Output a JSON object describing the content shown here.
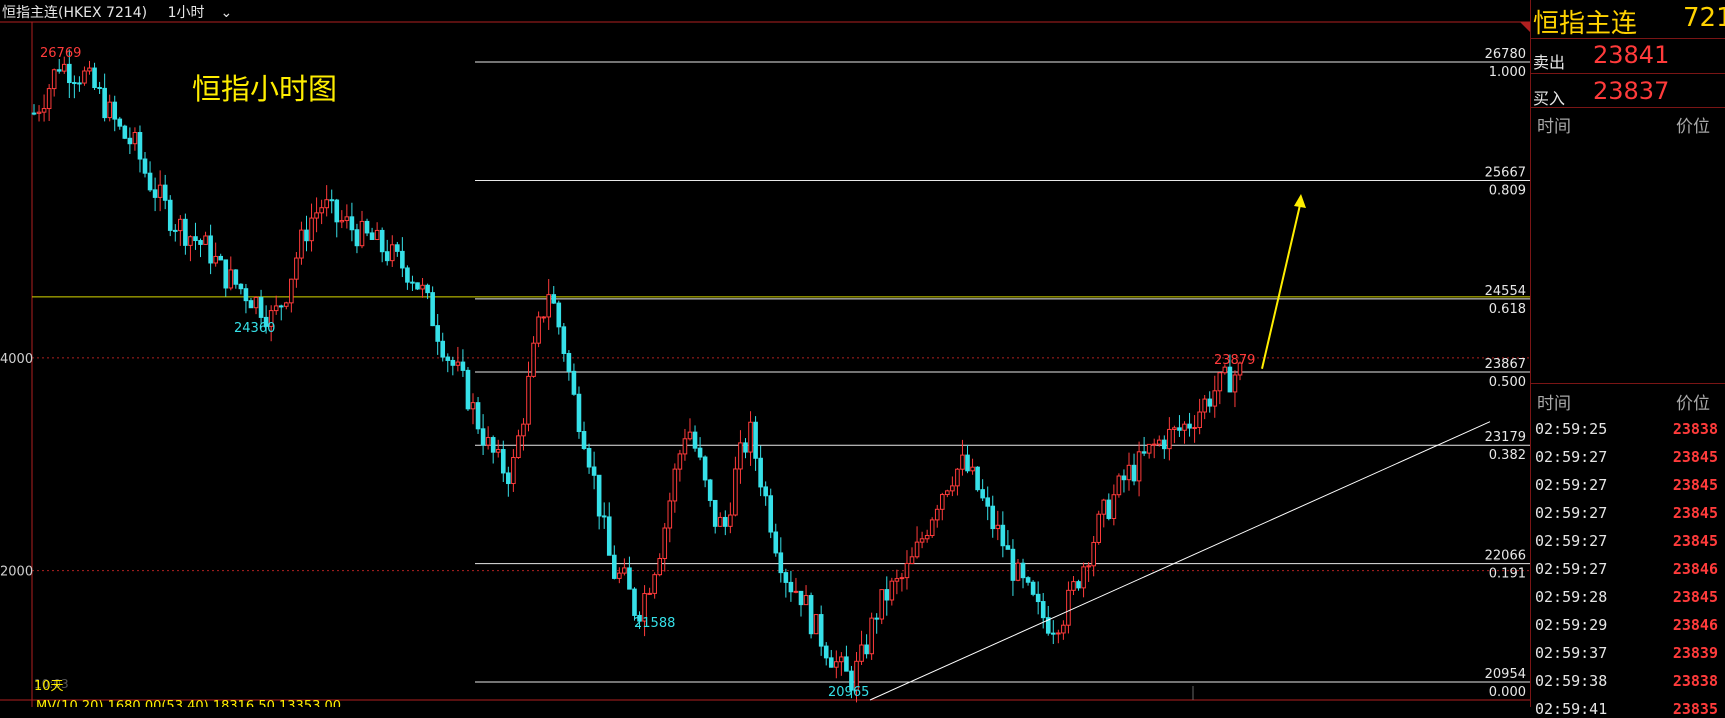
{
  "header": {
    "instrument": "恒指主连(HKEX 7214)",
    "period": "1小时"
  },
  "chart_title": "恒指小时图",
  "price_axis": [
    {
      "label": "4000",
      "value": 24000
    },
    {
      "label": "2000",
      "value": 22000
    }
  ],
  "fib_levels": [
    {
      "price": "26780",
      "ratio": "1.000",
      "value": 26780
    },
    {
      "price": "25667",
      "ratio": "0.809",
      "value": 25667
    },
    {
      "price": "24554",
      "ratio": "0.618",
      "value": 24554
    },
    {
      "price": "23867",
      "ratio": "0.500",
      "value": 23867
    },
    {
      "price": "23179",
      "ratio": "0.382",
      "value": 23179
    },
    {
      "price": "22066",
      "ratio": "0.191",
      "value": 22066
    },
    {
      "price": "20954",
      "ratio": "0.000",
      "value": 20954
    }
  ],
  "annotations": [
    {
      "text": "26769",
      "color": "#ff3b3b"
    },
    {
      "text": "24360",
      "color": "#36e0e8"
    },
    {
      "text": "21588",
      "color": "#36e0e8"
    },
    {
      "text": "20965",
      "color": "#36e0e8"
    },
    {
      "text": "23879",
      "color": "#ff3b3b"
    }
  ],
  "bottom": {
    "days": "10天",
    "faded": "10:03",
    "indicator": "MV(10,20) 1680.00(53.40) 18316.50 13353.00"
  },
  "colors": {
    "up": "#ff3b3b",
    "down": "#36e0e8",
    "fib": "#e8e8e8",
    "support": "#ffffff",
    "arrow": "#ffee00",
    "level_line": "#d8d800",
    "grid": "#b02020"
  },
  "sidebar": {
    "name": "恒指主连",
    "code": "7214",
    "sell_label": "卖出",
    "sell_price": "23841",
    "buy_label": "买入",
    "buy_price": "23837",
    "col_time": "时间",
    "col_price": "价位",
    "ticks": [
      {
        "time": "02:59:25",
        "price": "23838"
      },
      {
        "time": "02:59:27",
        "price": "23845"
      },
      {
        "time": "02:59:27",
        "price": "23845"
      },
      {
        "time": "02:59:27",
        "price": "23845"
      },
      {
        "time": "02:59:27",
        "price": "23845"
      },
      {
        "time": "02:59:27",
        "price": "23846"
      },
      {
        "time": "02:59:28",
        "price": "23845"
      },
      {
        "time": "02:59:29",
        "price": "23846"
      },
      {
        "time": "02:59:37",
        "price": "23839"
      },
      {
        "time": "02:59:38",
        "price": "23838"
      },
      {
        "time": "02:59:41",
        "price": "23835"
      }
    ]
  },
  "chart_data": {
    "type": "candlestick",
    "title": "恒指小时图",
    "ylim": [
      20800,
      27600
    ],
    "close_path": [
      26300,
      26500,
      26769,
      26700,
      26650,
      26500,
      26300,
      26100,
      26000,
      25700,
      25500,
      25300,
      25200,
      25100,
      25000,
      24800,
      24700,
      24600,
      24500,
      24360,
      24600,
      25000,
      25300,
      25450,
      25300,
      25250,
      25150,
      25100,
      25000,
      24900,
      24800,
      24600,
      24300,
      24000,
      23800,
      23500,
      23200,
      23000,
      22900,
      23500,
      24200,
      24650,
      24200,
      23600,
      23200,
      22600,
      22000,
      21900,
      21588,
      21900,
      22300,
      22900,
      23400,
      23000,
      22500,
      22400,
      23000,
      23300,
      22800,
      22300,
      21900,
      21800,
      21500,
      21300,
      21100,
      20965,
      21200,
      21600,
      21800,
      21900,
      22100,
      22400,
      22700,
      22900,
      23000,
      22800,
      22500,
      22300,
      22000,
      21800,
      21600,
      21500,
      21600,
      21900,
      22200,
      22500,
      22700,
      22900,
      23000,
      23150,
      23250,
      23300,
      23400,
      23550,
      23700,
      23800,
      23879
    ]
  }
}
